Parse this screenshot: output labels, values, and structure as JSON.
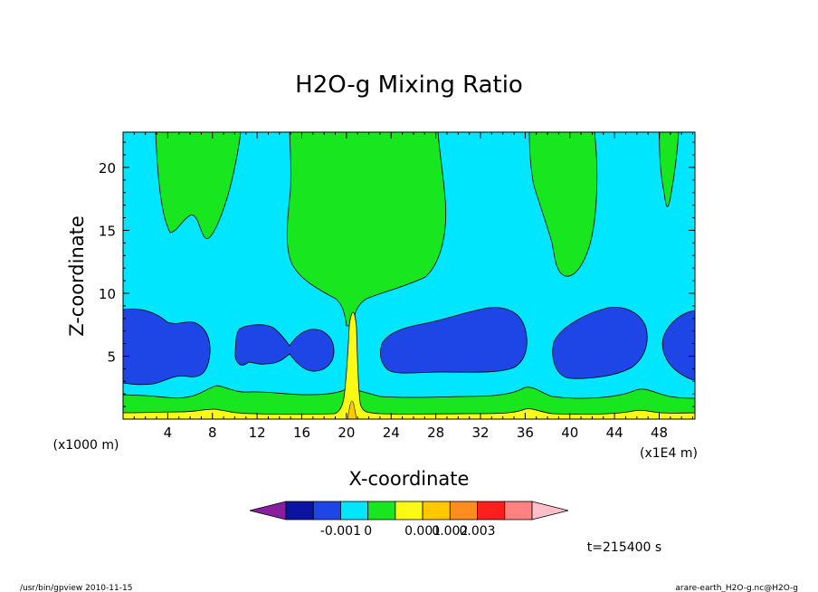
{
  "chart_data": {
    "type": "contour",
    "title": "H2O-g Mixing Ratio",
    "xlabel": "X-coordinate",
    "ylabel": "Z-coordinate",
    "x_ticks": [
      "4",
      "8",
      "12",
      "16",
      "20",
      "24",
      "28",
      "32",
      "36",
      "40",
      "44",
      "48"
    ],
    "y_ticks": [
      "5",
      "10",
      "15",
      "20"
    ],
    "x_unit": "(x1E4 m)",
    "y_unit": "(x1000 m)",
    "colorbar": {
      "colors": [
        "#8a1ea0",
        "#0a14a0",
        "#1e46e6",
        "#00e6ff",
        "#18e61e",
        "#fafa14",
        "#ffc800",
        "#ff8c1e",
        "#ff1e1e",
        "#ff8282",
        "#ffbec8"
      ],
      "labels": [
        "-0.001",
        "0",
        "0.001",
        "0.002",
        "0.003"
      ]
    },
    "time_label": "t=215400 s",
    "footer_left": "/usr/bin/gpview   2010-11-15",
    "footer_right": "arare-earth_H2O-g.nc@H2O-g"
  }
}
